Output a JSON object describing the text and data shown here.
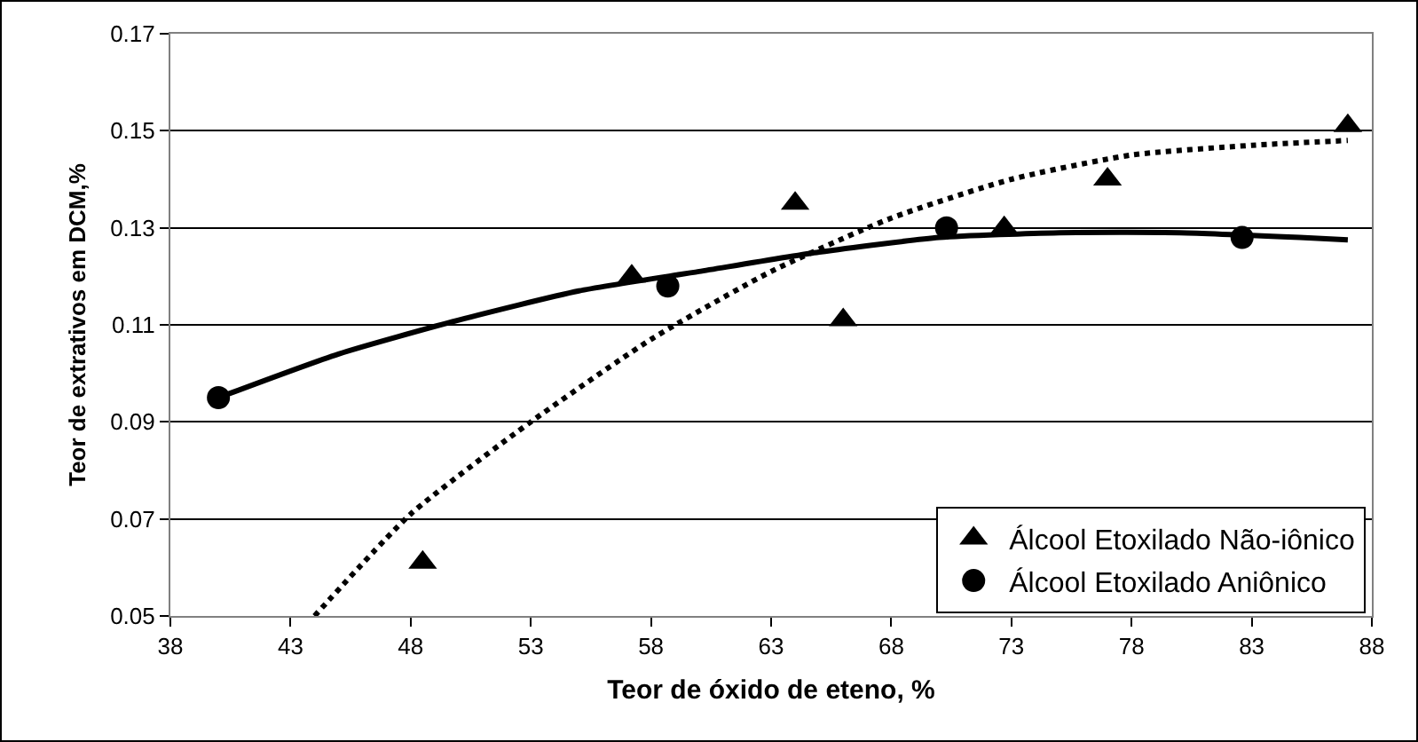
{
  "chart_data": {
    "type": "scatter",
    "xlabel": "Teor de óxido de eteno, %",
    "ylabel": "Teor de extrativos em DCM,%",
    "xlim": [
      38,
      88
    ],
    "xticks": [
      38,
      43,
      48,
      53,
      58,
      63,
      68,
      73,
      78,
      83,
      88
    ],
    "ylim": [
      0.05,
      0.17
    ],
    "yticks": [
      0.05,
      0.07,
      0.09,
      0.11,
      0.13,
      0.15,
      0.17
    ],
    "grid": "y",
    "legend": "bottom right",
    "series": [
      {
        "name": "Álcool Etoxilado Não-iônico",
        "marker": "triangle",
        "color": "#000000",
        "x": [
          48.5,
          57.2,
          64,
          66,
          72.7,
          77,
          87
        ],
        "values": [
          0.061,
          0.12,
          0.135,
          0.111,
          0.13,
          0.14,
          0.151
        ]
      },
      {
        "name": "Álcool Etoxilado Aniônico",
        "marker": "circle",
        "color": "#000000",
        "x": [
          40,
          58.7,
          70.3,
          82.6
        ],
        "values": [
          0.095,
          0.118,
          0.13,
          0.128
        ]
      },
      {
        "type": "line",
        "marker": "none",
        "line_style": "dotted",
        "color": "#000000",
        "x": [
          44,
          48,
          53,
          58,
          63,
          68,
          73,
          78,
          83,
          87
        ],
        "values": [
          0.05,
          0.071,
          0.09,
          0.107,
          0.121,
          0.132,
          0.14,
          0.145,
          0.147,
          0.148
        ]
      },
      {
        "type": "line",
        "marker": "none",
        "line_style": "solid",
        "color": "#000000",
        "x": [
          40,
          45,
          50,
          55,
          60,
          65,
          70,
          75,
          80,
          85,
          87
        ],
        "values": [
          0.095,
          0.104,
          0.111,
          0.117,
          0.121,
          0.125,
          0.128,
          0.129,
          0.129,
          0.128,
          0.1275
        ]
      }
    ]
  }
}
